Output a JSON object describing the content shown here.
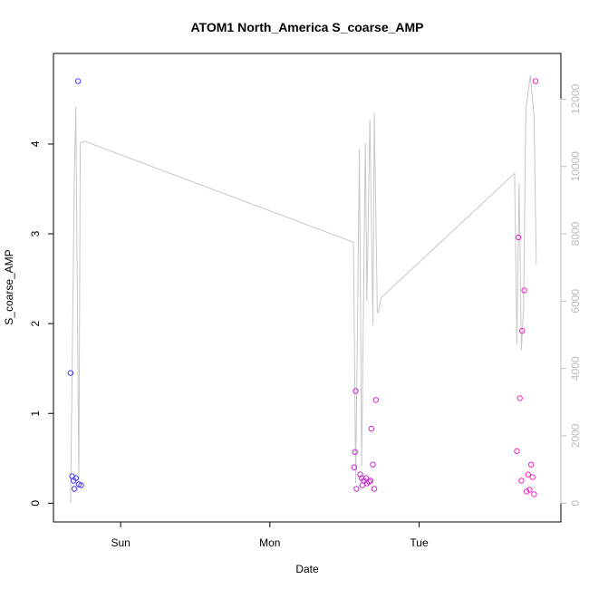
{
  "chart_data": {
    "type": "scatter",
    "title": "ATOM1 North_America S_coarse_AMP",
    "xlabel": "Date",
    "ylabel": "S_coarse_AMP",
    "x_ticks": [
      {
        "label": "Sun",
        "day": 1.0
      },
      {
        "label": "Mon",
        "day": 2.0
      },
      {
        "label": "Tue",
        "day": 3.0
      }
    ],
    "xlim": [
      0.55,
      3.95
    ],
    "ylim": [
      0,
      4.8
    ],
    "y_ticks": [
      0,
      1,
      2,
      3,
      4
    ],
    "y2lim": [
      0,
      12800
    ],
    "y2_ticks": [
      0,
      2000,
      4000,
      6000,
      8000,
      10000,
      12000
    ],
    "grid": false,
    "colors": {
      "axis": "#000000",
      "line": "#c8c8c8",
      "right_axis": "#bdbdbd",
      "point_start": "#3c3cff",
      "point_end": "#ff20c0"
    },
    "series": [
      {
        "kind": "points",
        "axis": "left",
        "points": [
          {
            "x": 0.665,
            "y": 1.45,
            "c": 0.0
          },
          {
            "x": 0.675,
            "y": 0.3,
            "c": 0.02
          },
          {
            "x": 0.685,
            "y": 0.25,
            "c": 0.03
          },
          {
            "x": 0.7,
            "y": 0.28,
            "c": 0.05
          },
          {
            "x": 0.69,
            "y": 0.16,
            "c": 0.04
          },
          {
            "x": 0.715,
            "y": 4.7,
            "c": 0.06
          },
          {
            "x": 0.72,
            "y": 0.21,
            "c": 0.07
          },
          {
            "x": 0.735,
            "y": 0.2,
            "c": 0.08
          },
          {
            "x": 2.565,
            "y": 0.4,
            "c": 0.7
          },
          {
            "x": 2.57,
            "y": 0.57,
            "c": 0.7
          },
          {
            "x": 2.575,
            "y": 1.25,
            "c": 0.71
          },
          {
            "x": 2.58,
            "y": 0.16,
            "c": 0.71
          },
          {
            "x": 2.605,
            "y": 0.32,
            "c": 0.72
          },
          {
            "x": 2.615,
            "y": 0.28,
            "c": 0.72
          },
          {
            "x": 2.62,
            "y": 0.2,
            "c": 0.73
          },
          {
            "x": 2.63,
            "y": 0.25,
            "c": 0.73
          },
          {
            "x": 2.645,
            "y": 0.28,
            "c": 0.74
          },
          {
            "x": 2.65,
            "y": 0.22,
            "c": 0.74
          },
          {
            "x": 2.665,
            "y": 0.24,
            "c": 0.75
          },
          {
            "x": 2.675,
            "y": 0.25,
            "c": 0.75
          },
          {
            "x": 2.68,
            "y": 0.83,
            "c": 0.76
          },
          {
            "x": 2.69,
            "y": 0.43,
            "c": 0.76
          },
          {
            "x": 2.7,
            "y": 0.16,
            "c": 0.77
          },
          {
            "x": 2.71,
            "y": 1.15,
            "c": 0.77
          },
          {
            "x": 3.655,
            "y": 0.58,
            "c": 0.95
          },
          {
            "x": 3.665,
            "y": 2.96,
            "c": 0.95
          },
          {
            "x": 3.675,
            "y": 1.17,
            "c": 0.96
          },
          {
            "x": 3.685,
            "y": 0.25,
            "c": 0.96
          },
          {
            "x": 3.69,
            "y": 1.92,
            "c": 0.96
          },
          {
            "x": 3.705,
            "y": 2.37,
            "c": 0.97
          },
          {
            "x": 3.72,
            "y": 0.13,
            "c": 0.97
          },
          {
            "x": 3.73,
            "y": 0.32,
            "c": 0.98
          },
          {
            "x": 3.74,
            "y": 0.15,
            "c": 0.98
          },
          {
            "x": 3.75,
            "y": 0.43,
            "c": 0.98
          },
          {
            "x": 3.76,
            "y": 0.29,
            "c": 0.99
          },
          {
            "x": 3.77,
            "y": 0.1,
            "c": 0.99
          },
          {
            "x": 3.78,
            "y": 4.7,
            "c": 1.0
          }
        ]
      },
      {
        "kind": "line",
        "axis": "right",
        "x": [
          0.665,
          0.69,
          0.7,
          0.72,
          0.73,
          0.76,
          2.56,
          2.575,
          2.6,
          2.615,
          2.64,
          2.65,
          2.67,
          2.69,
          2.7,
          2.72,
          2.725,
          2.745,
          3.64,
          3.655,
          3.67,
          3.685,
          3.7,
          3.715,
          3.745,
          3.77,
          3.785
        ],
        "y": [
          0,
          9800,
          11800,
          600,
          10700,
          10750,
          7750,
          600,
          10500,
          1100,
          10700,
          6000,
          11400,
          5300,
          11600,
          5700,
          5650,
          6100,
          9800,
          4700,
          9500,
          4550,
          5800,
          11700,
          12700,
          11500,
          7100
        ]
      }
    ]
  }
}
